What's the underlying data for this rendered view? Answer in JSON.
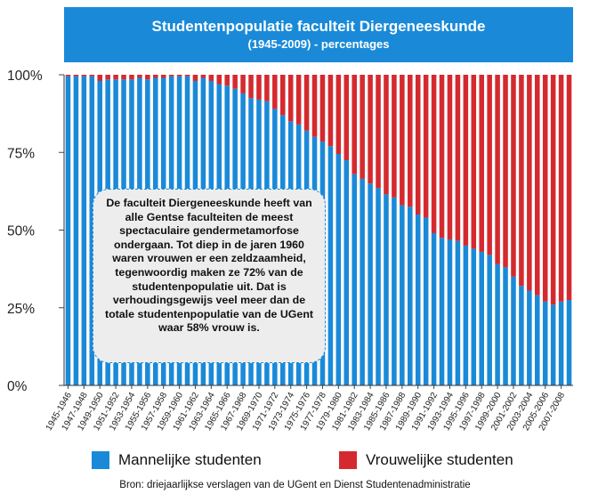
{
  "title": "Studentenpopulatie faculteit Diergeneeskunde",
  "subtitle": "(1945-2009) - percentages",
  "annotation": "De faculteit Diergeneeskunde heeft van alle Gentse faculteiten de meest spectaculaire gendermetamorfose ondergaan. Tot diep in de jaren 1960 waren vrouwen er een zeldzaamheid, tegenwoordig maken ze 72% van de studentenpopulatie uit. Dat is verhoudingsgewijs veel meer dan de totale studentenpopulatie van de UGent waar 58% vrouw is.",
  "source": "Bron: driejaarlijkse verslagen van de UGent en Dienst Studentenadministratie",
  "colors": {
    "male": "#1a8ad8",
    "female": "#d42a2f",
    "banner": "#1a8ad8"
  },
  "chart_data": {
    "type": "bar",
    "stacked": true,
    "percent_stacked": true,
    "ylim": [
      0,
      100
    ],
    "yticks": [
      "0%",
      "25%",
      "50%",
      "75%",
      "100%"
    ],
    "grid": false,
    "legend_position": "bottom",
    "categories": [
      "1945-1946",
      "1946-1947",
      "1947-1948",
      "1948-1949",
      "1949-1950",
      "1950-1951",
      "1951-1952",
      "1952-1953",
      "1953-1954",
      "1954-1955",
      "1955-1956",
      "1956-1957",
      "1957-1958",
      "1958-1959",
      "1959-1960",
      "1960-1961",
      "1961-1962",
      "1962-1963",
      "1963-1964",
      "1964-1965",
      "1965-1966",
      "1966-1967",
      "1967-1968",
      "1968-1969",
      "1969-1970",
      "1970-1971",
      "1971-1972",
      "1972-1973",
      "1973-1974",
      "1974-1975",
      "1975-1976",
      "1976-1977",
      "1977-1978",
      "1978-1979",
      "1979-1980",
      "1980-1981",
      "1981-1982",
      "1982-1983",
      "1983-1984",
      "1984-1985",
      "1985-1986",
      "1986-1987",
      "1987-1988",
      "1988-1989",
      "1989-1990",
      "1990-1991",
      "1991-1992",
      "1992-1993",
      "1993-1994",
      "1994-1995",
      "1995-1996",
      "1996-1997",
      "1997-1998",
      "1998-1999",
      "1999-2000",
      "2000-2001",
      "2001-2002",
      "2002-2003",
      "2003-2004",
      "2004-2005",
      "2005-2006",
      "2006-2007",
      "2007-2008",
      "2008-2009"
    ],
    "series": [
      {
        "name": "Mannelijke studenten",
        "values": [
          99.5,
          99.5,
          99.5,
          99.5,
          98,
          98.5,
          98.5,
          98.5,
          98.5,
          99,
          98.5,
          99,
          99,
          99.5,
          99.5,
          99.5,
          98,
          99,
          98,
          97,
          96.5,
          95.5,
          94,
          92.5,
          92,
          91.5,
          89,
          87,
          85,
          84,
          82,
          80,
          78.5,
          77,
          74.5,
          72.5,
          68,
          66.5,
          65,
          63.5,
          61.5,
          60.5,
          58,
          57.5,
          55,
          54,
          49,
          47.5,
          47,
          46.5,
          45,
          44,
          43,
          42,
          39,
          38,
          35,
          32,
          30.5,
          29,
          27,
          26,
          27,
          27.5
        ]
      },
      {
        "name": "Vrouwelijke studenten",
        "values": [
          0.5,
          0.5,
          0.5,
          0.5,
          2,
          1.5,
          1.5,
          1.5,
          1.5,
          1,
          1.5,
          1,
          1,
          0.5,
          0.5,
          0.5,
          2,
          1,
          2,
          3,
          3.5,
          4.5,
          6,
          7.5,
          8,
          8.5,
          11,
          13,
          15,
          16,
          18,
          20,
          21.5,
          23,
          25.5,
          27.5,
          32,
          33.5,
          35,
          36.5,
          38.5,
          39.5,
          42,
          42.5,
          45,
          46,
          51,
          52.5,
          53,
          53.5,
          55,
          56,
          57,
          58,
          61,
          62,
          65,
          68,
          69.5,
          71,
          73,
          74,
          73,
          72.5
        ]
      }
    ],
    "xtick_labels": [
      "1945-1946",
      "1947-1948",
      "1949-1950",
      "1951-1952",
      "1953-1954",
      "1955-1956",
      "1957-1958",
      "1959-1960",
      "1961-1962",
      "1963-1964",
      "1965-1966",
      "1967-1968",
      "1969-1970",
      "1971-1972",
      "1973-1974",
      "1975-1976",
      "1977-1978",
      "1979-1980",
      "1981-1982",
      "1983-1984",
      "1985-1986",
      "1987-1988",
      "1989-1990",
      "1991-1992",
      "1993-1994",
      "1995-1996",
      "1997-1998",
      "1999-2000",
      "2001-2002",
      "2003-2004",
      "2005-2006",
      "2007-2008"
    ]
  }
}
